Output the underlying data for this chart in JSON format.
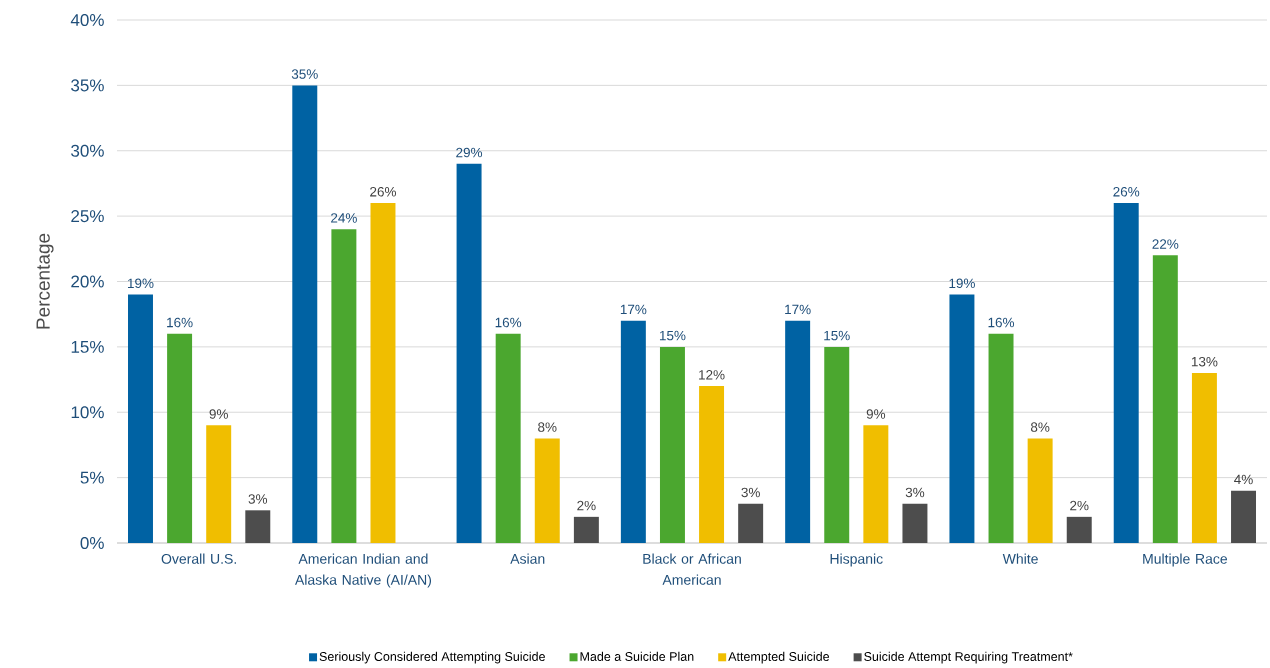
{
  "chart_data": {
    "type": "bar",
    "ylabel": "Percentage",
    "categories": [
      "Overall U.S.",
      "American Indian and Alaska Native (AI/AN)",
      "Asian",
      "Black or African American",
      "Hispanic",
      "White",
      "Multiple Race"
    ],
    "series": [
      {
        "name": "Seriously Considered Attempting Suicide",
        "color": "#0062a3",
        "values": [
          19,
          35,
          29,
          17,
          17,
          19,
          26
        ],
        "value_labels": [
          "19%",
          "35%",
          "29%",
          "17%",
          "17%",
          "19%",
          "26%"
        ]
      },
      {
        "name": "Made a Suicide Plan",
        "color": "#4ba72f",
        "values": [
          16,
          24,
          16,
          15,
          15,
          16,
          22
        ],
        "value_labels": [
          "16%",
          "24%",
          "16%",
          "15%",
          "15%",
          "16%",
          "22%"
        ]
      },
      {
        "name": "Attempted Suicide",
        "color": "#f0be00",
        "values": [
          9,
          26,
          8,
          12,
          9,
          8,
          13
        ],
        "value_labels": [
          "9%",
          "26%",
          "8%",
          "12%",
          "9%",
          "8%",
          "13%"
        ]
      },
      {
        "name": "Suicide Attempt Requiring Treatment*",
        "color": "#4d4d4d",
        "values": [
          2.5,
          null,
          2,
          3,
          3,
          2,
          4
        ],
        "value_labels": [
          "3%",
          null,
          "2%",
          "3%",
          "3%",
          "2%",
          "4%"
        ]
      }
    ],
    "ylim": [
      0,
      40
    ],
    "yticks": [
      {
        "value": 0,
        "label": "0%"
      },
      {
        "value": 5,
        "label": "5%"
      },
      {
        "value": 10,
        "label": "10%"
      },
      {
        "value": 15,
        "label": "15%"
      },
      {
        "value": 20,
        "label": "20%"
      },
      {
        "value": 25,
        "label": "25%"
      },
      {
        "value": 30,
        "label": "30%"
      },
      {
        "value": 35,
        "label": "35%"
      },
      {
        "value": 40,
        "label": "40%"
      }
    ],
    "grid": "y",
    "legend": "bottom"
  }
}
